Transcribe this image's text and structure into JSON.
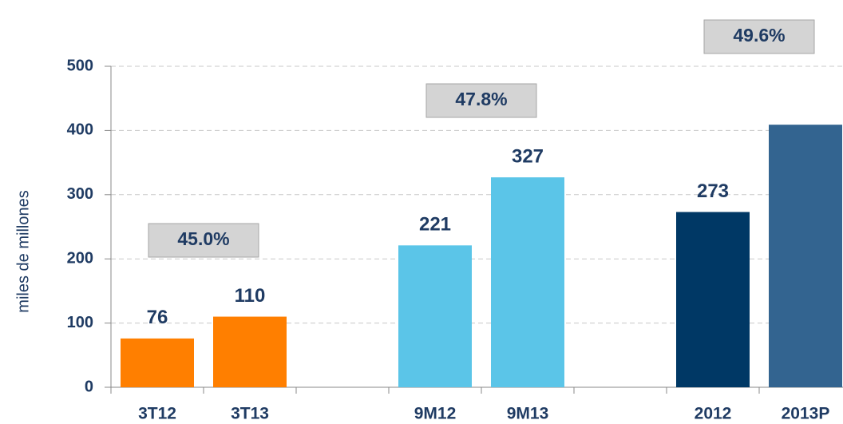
{
  "chart_data": {
    "type": "bar",
    "y_label": "miles de millones",
    "categories": [
      "3T12",
      "3T13",
      null,
      "9M12",
      "9M13",
      null,
      "2012",
      "2013P"
    ],
    "values": [
      76,
      110,
      null,
      221,
      327,
      null,
      273,
      409
    ],
    "value_labels": [
      "76",
      "110",
      null,
      "221",
      "327",
      null,
      "273",
      null
    ],
    "colors": [
      "#ff7f00",
      "#ff7f00",
      null,
      "#5bc5e8",
      "#5bc5e8",
      null,
      "#003865",
      "#336490"
    ],
    "annotations": [
      "45.0%",
      "47.8%",
      "49.6%"
    ],
    "ylim": [
      0,
      500
    ],
    "yticks": [
      0,
      100,
      200,
      300,
      400,
      500
    ],
    "grid": true
  }
}
